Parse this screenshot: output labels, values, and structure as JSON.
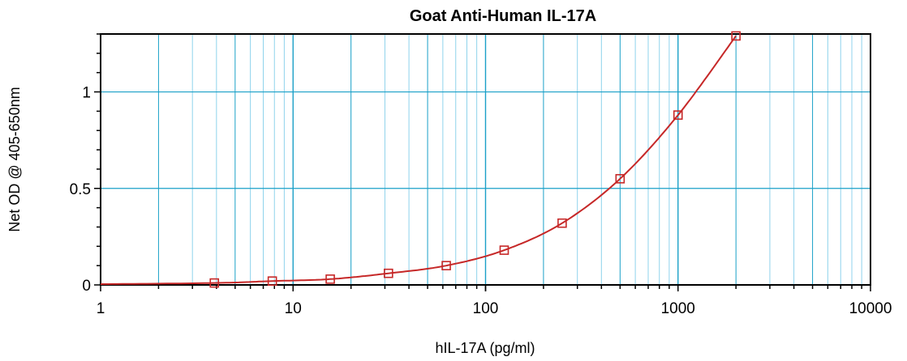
{
  "chart_data": {
    "type": "scatter",
    "title": "Goat Anti-Human IL-17A",
    "xlabel": "hIL-17A (pg/ml)",
    "ylabel": "Net OD @ 405-650nm",
    "x_scale": "log",
    "xlim": [
      1,
      10000
    ],
    "ylim": [
      0,
      1.3
    ],
    "x_ticks": [
      1,
      10,
      100,
      1000,
      10000
    ],
    "x_tick_labels": [
      "1",
      "10",
      "100",
      "1000",
      "10000"
    ],
    "y_ticks": [
      0,
      0.5,
      1
    ],
    "y_tick_labels": [
      "0",
      "0.5",
      "1"
    ],
    "grid": true,
    "legend": "none",
    "series": [
      {
        "marker": "open-square",
        "fit": "smooth-curve",
        "x": [
          3.9,
          7.8,
          15.6,
          31.3,
          62.5,
          125,
          250,
          500,
          1000,
          2000
        ],
        "y": [
          0.01,
          0.02,
          0.03,
          0.06,
          0.1,
          0.18,
          0.32,
          0.55,
          0.88,
          1.29
        ]
      }
    ],
    "colors": {
      "grid": "#1aa0c8",
      "grid_minor": "#8fd3ec",
      "series": "#c62828",
      "frame": "#000000"
    }
  }
}
